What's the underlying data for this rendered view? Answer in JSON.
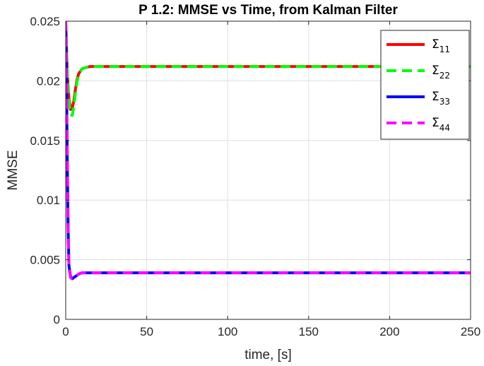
{
  "chart_data": {
    "type": "line",
    "title": "P 1.2: MMSE vs Time, from Kalman Filter",
    "xlabel": "time, [s]",
    "ylabel": "MMSE",
    "xlim": [
      0,
      250
    ],
    "ylim": [
      0,
      0.025
    ],
    "x_ticks": [
      0,
      50,
      100,
      150,
      200,
      250
    ],
    "x_tick_labels": [
      "0",
      "50",
      "100",
      "150",
      "200",
      "250"
    ],
    "y_ticks": [
      0,
      0.005,
      0.01,
      0.015,
      0.02,
      0.025
    ],
    "y_tick_labels": [
      "0",
      "0.005",
      "0.01",
      "0.015",
      "0.02",
      "0.025"
    ],
    "grid": true,
    "legend_position": "top-right",
    "series": [
      {
        "name": "Σ",
        "subscript": "11",
        "color": "#ff0000",
        "style": "solid",
        "x": [
          0,
          1,
          2,
          3,
          4,
          5,
          6,
          7,
          8,
          10,
          12,
          15,
          20,
          30,
          50,
          100,
          150,
          200,
          250
        ],
        "y": [
          0.025,
          0.0205,
          0.0185,
          0.0176,
          0.0177,
          0.0183,
          0.0193,
          0.0201,
          0.0206,
          0.021,
          0.0211,
          0.0212,
          0.0212,
          0.0212,
          0.0212,
          0.0212,
          0.0212,
          0.0212,
          0.0212
        ]
      },
      {
        "name": "Σ",
        "subscript": "22",
        "color": "#00ff00",
        "style": "dashed",
        "x": [
          0,
          1,
          2,
          3,
          4,
          5,
          6,
          7,
          8,
          10,
          12,
          15,
          20,
          30,
          50,
          100,
          150,
          200,
          250
        ],
        "y": [
          0.025,
          0.0205,
          0.0182,
          0.0172,
          0.0171,
          0.0178,
          0.019,
          0.0199,
          0.0205,
          0.021,
          0.0211,
          0.0212,
          0.0212,
          0.0212,
          0.0212,
          0.0212,
          0.0212,
          0.0212,
          0.0212
        ]
      },
      {
        "name": "Σ",
        "subscript": "33",
        "color": "#0000ff",
        "style": "solid",
        "x": [
          0,
          0.5,
          1,
          1.5,
          2,
          3,
          4,
          5,
          6,
          8,
          10,
          15,
          20,
          30,
          50,
          100,
          150,
          200,
          250
        ],
        "y": [
          0.025,
          0.02,
          0.013,
          0.0075,
          0.0045,
          0.0036,
          0.0034,
          0.0035,
          0.0036,
          0.0038,
          0.0039,
          0.0039,
          0.0039,
          0.0039,
          0.0039,
          0.0039,
          0.0039,
          0.0039,
          0.0039
        ]
      },
      {
        "name": "Σ",
        "subscript": "44",
        "color": "#ff00ff",
        "style": "dashed",
        "x": [
          0,
          0.5,
          1,
          1.5,
          2,
          3,
          4,
          5,
          6,
          8,
          10,
          15,
          20,
          30,
          50,
          100,
          150,
          200,
          250
        ],
        "y": [
          0.025,
          0.0198,
          0.0128,
          0.0073,
          0.0044,
          0.0035,
          0.0034,
          0.0035,
          0.0036,
          0.0038,
          0.0039,
          0.0039,
          0.0039,
          0.0039,
          0.0039,
          0.0039,
          0.0039,
          0.0039,
          0.0039
        ]
      }
    ]
  }
}
